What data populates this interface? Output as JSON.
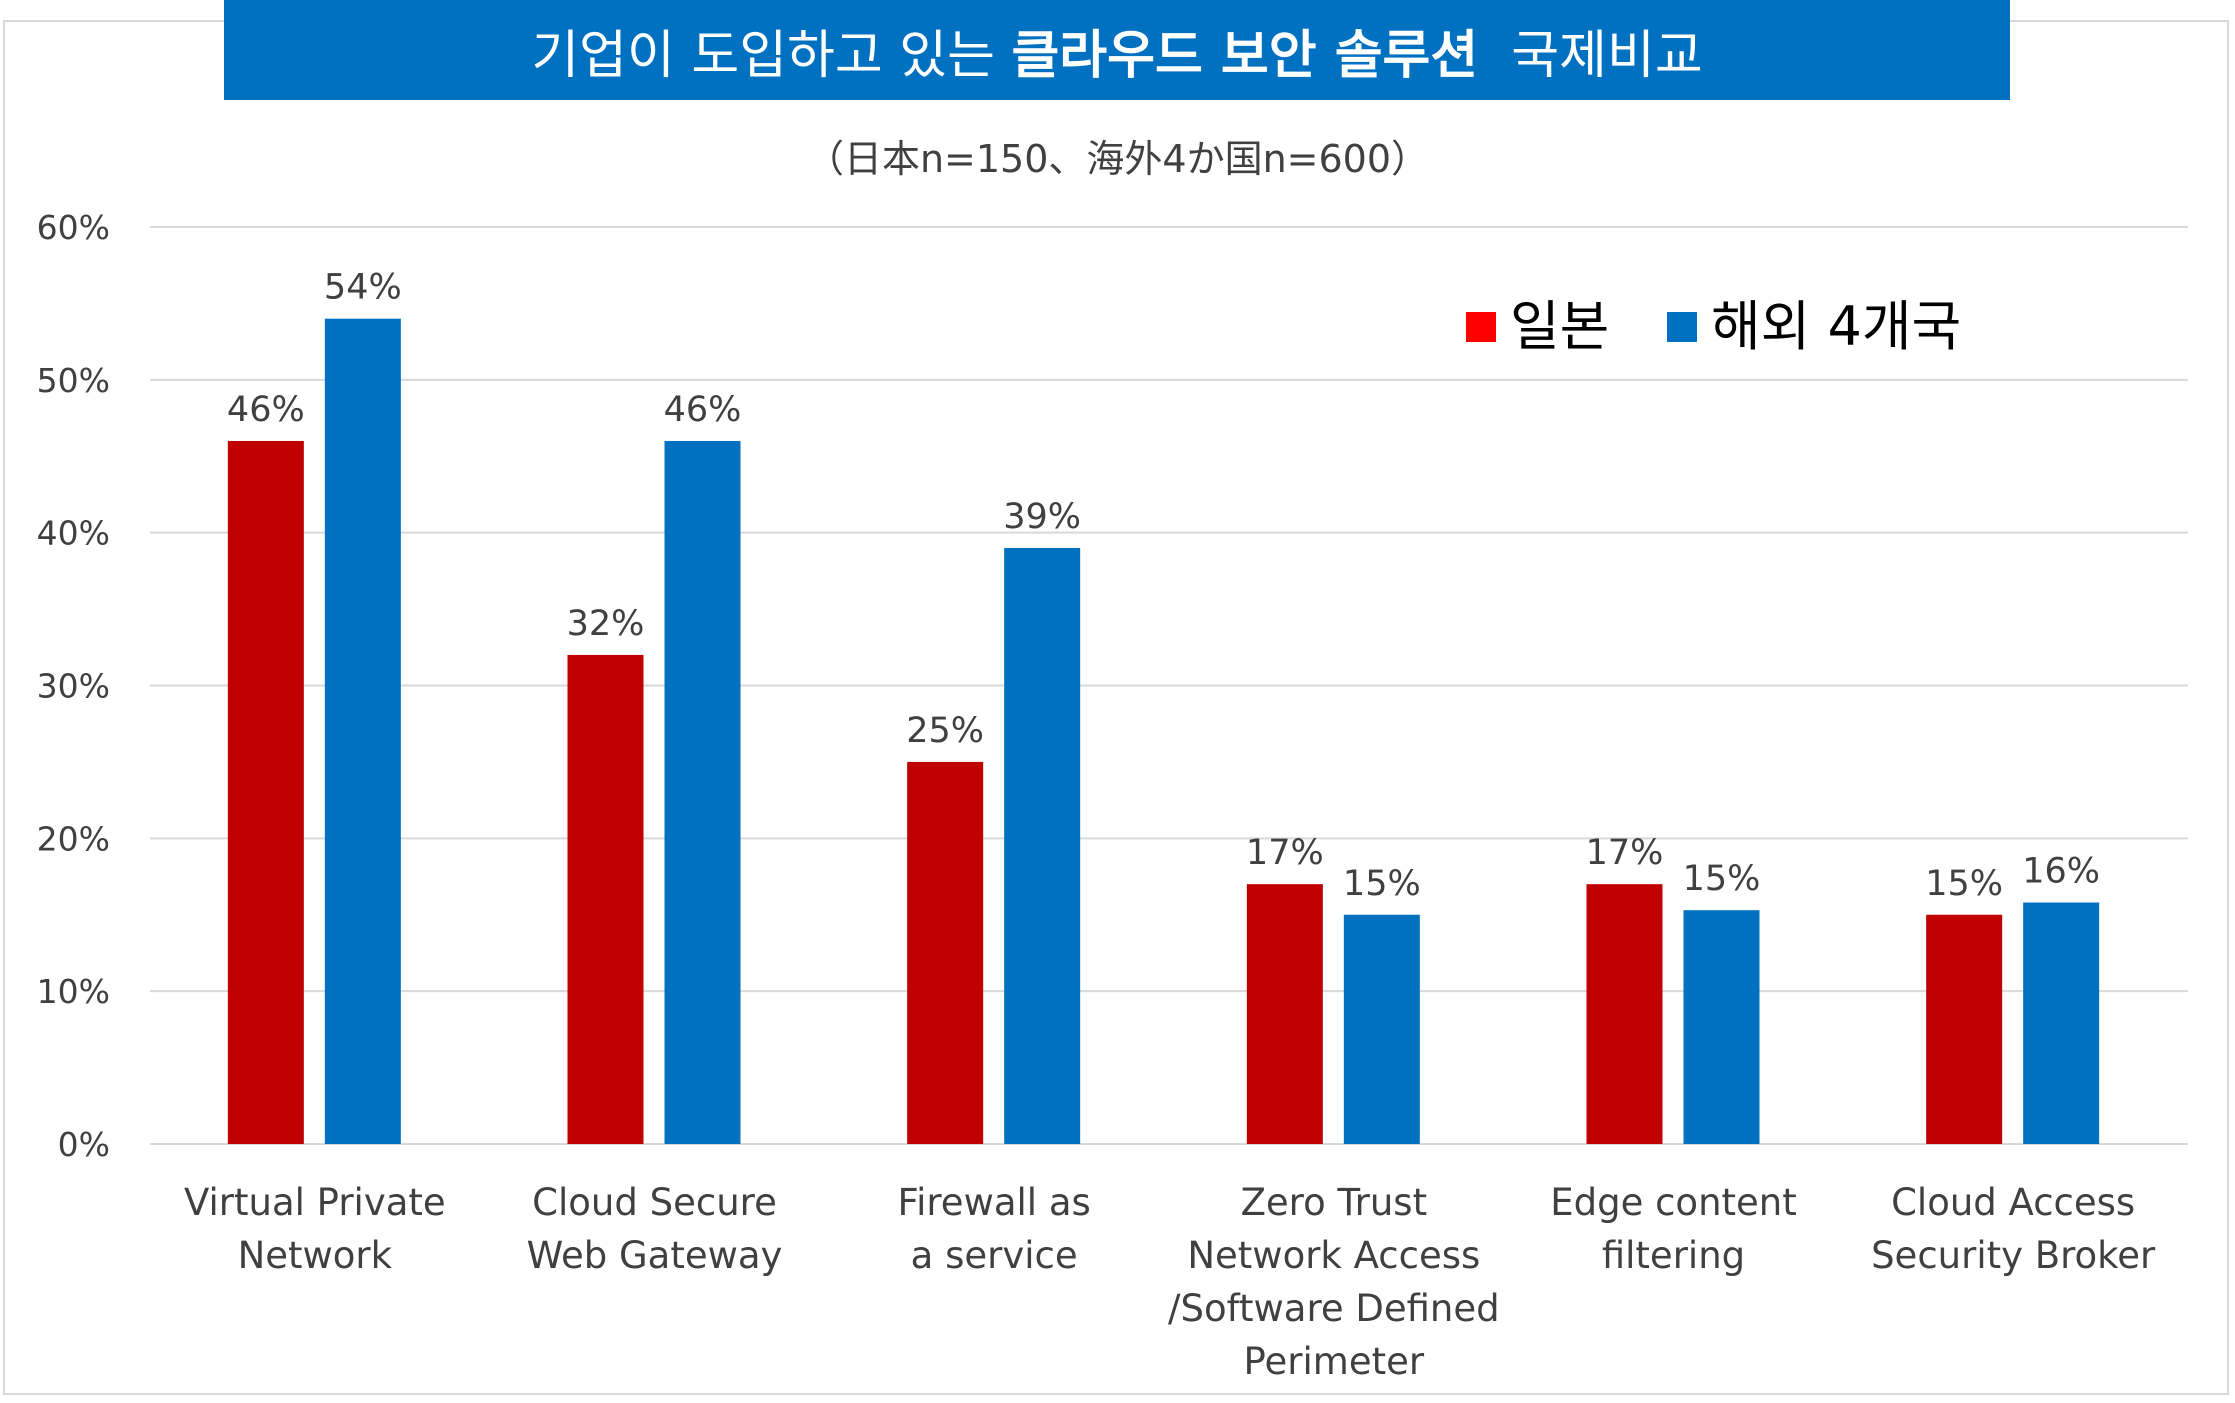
{
  "chart_data": {
    "type": "bar",
    "title_parts": {
      "normal1": "기업이 도입하고 있는 ",
      "bold": "클라우드 보안 솔루션",
      "normal2": "  국제비교"
    },
    "subtitle": "（日本n=150、海外4か国n=600）",
    "categories": [
      [
        "Virtual Private",
        "Network"
      ],
      [
        "Cloud Secure",
        "Web Gateway"
      ],
      [
        "Firewall as",
        "a service"
      ],
      [
        "Zero Trust",
        "Network Access",
        "/Software Defined",
        "Perimeter"
      ],
      [
        "Edge content",
        "filtering"
      ],
      [
        "Cloud Access",
        "Security Broker"
      ]
    ],
    "series": [
      {
        "name": "일본",
        "color": "#c00000",
        "values": [
          46,
          32,
          25,
          17,
          17,
          15
        ],
        "labels": [
          "46%",
          "32%",
          "25%",
          "17%",
          "17%",
          "15%"
        ]
      },
      {
        "name": "해외 4개국",
        "color": "#0070c0",
        "values": [
          54,
          46,
          39,
          15,
          15.3,
          15.8
        ],
        "labels": [
          "54%",
          "46%",
          "39%",
          "15%",
          "15%",
          "16%"
        ]
      }
    ],
    "legend_colors": [
      "#ff0000",
      "#0070c0"
    ],
    "ylim": [
      0,
      60
    ],
    "yticks": [
      0,
      10,
      20,
      30,
      40,
      50,
      60
    ],
    "ytick_labels": [
      "0%",
      "10%",
      "20%",
      "30%",
      "40%",
      "50%",
      "60%"
    ],
    "grid": true,
    "legend_position": "top-right"
  }
}
